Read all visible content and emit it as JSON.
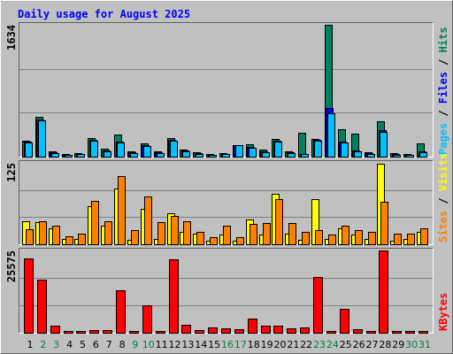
{
  "chart_data": {
    "type": "bar",
    "title": "Daily usage for August 2025",
    "title_color": "#0000ff",
    "legend_separator": " / ",
    "grid": true,
    "categories": [
      "1",
      "2",
      "3",
      "4",
      "5",
      "6",
      "7",
      "8",
      "9",
      "10",
      "11",
      "12",
      "13",
      "14",
      "15",
      "16",
      "17",
      "18",
      "19",
      "20",
      "21",
      "22",
      "23",
      "24",
      "25",
      "26",
      "27",
      "28",
      "29",
      "30",
      "31"
    ],
    "category_colors": [
      "#000000",
      "#008040",
      "#008040",
      "#000000",
      "#000000",
      "#000000",
      "#000000",
      "#000000",
      "#008040",
      "#008040",
      "#000000",
      "#000000",
      "#000000",
      "#000000",
      "#000000",
      "#008040",
      "#008040",
      "#000000",
      "#000000",
      "#000000",
      "#000000",
      "#000000",
      "#008040",
      "#008040",
      "#000000",
      "#000000",
      "#000000",
      "#000000",
      "#000000",
      "#008040",
      "#008040"
    ],
    "panels": [
      {
        "ylim": [
          0,
          1634
        ],
        "yticks": [
          1634
        ],
        "series": [
          {
            "name": "Pages",
            "color": "#00c0ff",
            "values": [
              176,
              451,
              44,
              22,
              33,
              198,
              66,
              176,
              44,
              132,
              44,
              198,
              66,
              33,
              22,
              33,
              143,
              110,
              55,
              187,
              44,
              33,
              198,
              539,
              176,
              66,
              33,
              308,
              22,
              22,
              55
            ]
          },
          {
            "name": "Files",
            "color": "#0000ff",
            "values": [
              187,
              462,
              55,
              22,
              33,
              209,
              77,
              187,
              55,
              143,
              55,
              209,
              77,
              44,
              22,
              33,
              143,
              121,
              66,
              198,
              55,
              33,
              209,
              600,
              187,
              77,
              44,
              330,
              33,
              22,
              66
            ]
          },
          {
            "name": "Hits",
            "color": "#00805c",
            "values": [
              198,
              495,
              66,
              33,
              44,
              231,
              99,
              275,
              66,
              165,
              66,
              231,
              88,
              55,
              33,
              44,
              143,
              154,
              88,
              220,
              66,
              297,
              220,
              1634,
              341,
              286,
              55,
              440,
              44,
              33,
              165
            ]
          }
        ]
      },
      {
        "ylim": [
          0,
          125
        ],
        "yticks": [
          125
        ],
        "series": [
          {
            "name": "Sites",
            "color": "#ff8000",
            "values": [
              23,
              35,
              28,
              12,
              16,
              66,
              35,
              105,
              22,
              73,
              34,
              43,
              35,
              19,
              11,
              28,
              11,
              31,
              32,
              69,
              32,
              19,
              22,
              15,
              28,
              22,
              19,
              65,
              16,
              16,
              24
            ]
          },
          {
            "name": "Visits",
            "color": "#ffff00",
            "values": [
              35,
              34,
              24,
              8,
              8,
              58,
              28,
              85,
              7,
              55,
              8,
              47,
              19,
              16,
              5,
              15,
              5,
              38,
              15,
              78,
              16,
              7,
              69,
              8,
              24,
              15,
              8,
              124,
              5,
              8,
              19
            ]
          }
        ]
      },
      {
        "ylim": [
          0,
          25575
        ],
        "yticks": [
          25575
        ],
        "series": [
          {
            "name": "KBytes",
            "color": "#ff0000",
            "values": [
              23100,
              16500,
              2200,
              550,
              550,
              825,
              825,
              13200,
              550,
              8525,
              550,
              22825,
              2475,
              825,
              1650,
              1375,
              1100,
              4400,
              2200,
              2200,
              1375,
              1650,
              17325,
              550,
              7425,
              1100,
              550,
              25575,
              550,
              550,
              550
            ]
          }
        ]
      }
    ]
  }
}
